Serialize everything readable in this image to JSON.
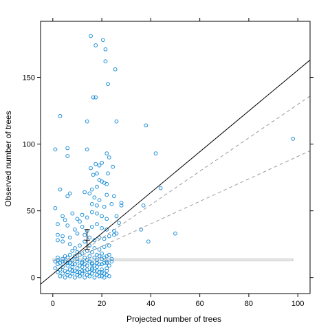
{
  "chart_data": {
    "type": "scatter",
    "title": "",
    "xlabel": "Projected number of trees",
    "ylabel": "Observed number of trees",
    "xlim": [
      -5,
      105
    ],
    "ylim": [
      -12,
      192
    ],
    "xticks": [
      0,
      20,
      40,
      60,
      80,
      100
    ],
    "yticks": [
      0,
      50,
      100,
      150
    ],
    "grid": false,
    "legend": "none",
    "colors": {
      "points": "#1f8fd6",
      "line": "#000000",
      "dashed": "#999999",
      "band": "#cccccc"
    },
    "points": [
      [
        15.5,
        181
      ],
      [
        20.5,
        178
      ],
      [
        17.5,
        174
      ],
      [
        21.5,
        171
      ],
      [
        21.5,
        162
      ],
      [
        25.5,
        156
      ],
      [
        22.5,
        145
      ],
      [
        17.5,
        135
      ],
      [
        16.5,
        135
      ],
      [
        3,
        121
      ],
      [
        14,
        117
      ],
      [
        26,
        117
      ],
      [
        38,
        114
      ],
      [
        98,
        104
      ],
      [
        1,
        96
      ],
      [
        6,
        97
      ],
      [
        14,
        96
      ],
      [
        22,
        93
      ],
      [
        23,
        90
      ],
      [
        6,
        91
      ],
      [
        20,
        86
      ],
      [
        17.5,
        85
      ],
      [
        18,
        78
      ],
      [
        19,
        84
      ],
      [
        15.5,
        82
      ],
      [
        16.5,
        77
      ],
      [
        24.5,
        83
      ],
      [
        22.5,
        78
      ],
      [
        42,
        93
      ],
      [
        44,
        67
      ],
      [
        3,
        66
      ],
      [
        7,
        63
      ],
      [
        6,
        61
      ],
      [
        19,
        73
      ],
      [
        20,
        72
      ],
      [
        21,
        71
      ],
      [
        22,
        70
      ],
      [
        18,
        68
      ],
      [
        16,
        66
      ],
      [
        13,
        64
      ],
      [
        15,
        63
      ],
      [
        22,
        62
      ],
      [
        25,
        61
      ],
      [
        17,
        60
      ],
      [
        19,
        58
      ],
      [
        16,
        55
      ],
      [
        18,
        54
      ],
      [
        21,
        53
      ],
      [
        24,
        55
      ],
      [
        28,
        56
      ],
      [
        28,
        54
      ],
      [
        37,
        54
      ],
      [
        1,
        52
      ],
      [
        4,
        46
      ],
      [
        5,
        43
      ],
      [
        8,
        48
      ],
      [
        10,
        44
      ],
      [
        12,
        47
      ],
      [
        11,
        42
      ],
      [
        14,
        45
      ],
      [
        16,
        49
      ],
      [
        18,
        48
      ],
      [
        20,
        46
      ],
      [
        22,
        44
      ],
      [
        26,
        46
      ],
      [
        27,
        41
      ],
      [
        2,
        40
      ],
      [
        6,
        39
      ],
      [
        9,
        36
      ],
      [
        12,
        38
      ],
      [
        14,
        35
      ],
      [
        16,
        38
      ],
      [
        18,
        40
      ],
      [
        20,
        37
      ],
      [
        22,
        36
      ],
      [
        25,
        35
      ],
      [
        26,
        33
      ],
      [
        36,
        36
      ],
      [
        2,
        32
      ],
      [
        4,
        31
      ],
      [
        7,
        30
      ],
      [
        10,
        33
      ],
      [
        13,
        32
      ],
      [
        15,
        30
      ],
      [
        17,
        28
      ],
      [
        19,
        30
      ],
      [
        21,
        29
      ],
      [
        23,
        31
      ],
      [
        25,
        32
      ],
      [
        39,
        27
      ],
      [
        50,
        33
      ],
      [
        2,
        28
      ],
      [
        4,
        27
      ],
      [
        7,
        25
      ],
      [
        9,
        22
      ],
      [
        11,
        24
      ],
      [
        13,
        27
      ],
      [
        15,
        24
      ],
      [
        17,
        22
      ],
      [
        19,
        21
      ],
      [
        21,
        23
      ],
      [
        23,
        24
      ],
      [
        8,
        20
      ],
      [
        10,
        19
      ],
      [
        12,
        18
      ],
      [
        14,
        20
      ],
      [
        16,
        19
      ],
      [
        18,
        17
      ],
      [
        20,
        18
      ],
      [
        22,
        16
      ],
      [
        2,
        15
      ],
      [
        4,
        14
      ],
      [
        6,
        15
      ],
      [
        8,
        13
      ],
      [
        10,
        14
      ],
      [
        12,
        12
      ],
      [
        14,
        13
      ],
      [
        16,
        11
      ],
      [
        18,
        13
      ],
      [
        20,
        14
      ],
      [
        22,
        12
      ],
      [
        24,
        14
      ],
      [
        1,
        12
      ],
      [
        3,
        11
      ],
      [
        5,
        12
      ],
      [
        7,
        11
      ],
      [
        9,
        10
      ],
      [
        11,
        9
      ],
      [
        13,
        10
      ],
      [
        15,
        12
      ],
      [
        17,
        9
      ],
      [
        19,
        10
      ],
      [
        21,
        11
      ],
      [
        23,
        9
      ],
      [
        2,
        10
      ],
      [
        4,
        8
      ],
      [
        6,
        9
      ],
      [
        8,
        8
      ],
      [
        10,
        7
      ],
      [
        12,
        8
      ],
      [
        14,
        6
      ],
      [
        16,
        7
      ],
      [
        18,
        8
      ],
      [
        20,
        6
      ],
      [
        22,
        7
      ],
      [
        1,
        7
      ],
      [
        3,
        6
      ],
      [
        5,
        5
      ],
      [
        7,
        6
      ],
      [
        9,
        5
      ],
      [
        11,
        4
      ],
      [
        13,
        5
      ],
      [
        15,
        4
      ],
      [
        17,
        5
      ],
      [
        19,
        4
      ],
      [
        21,
        3
      ],
      [
        2,
        4
      ],
      [
        4,
        3
      ],
      [
        6,
        2
      ],
      [
        8,
        3
      ],
      [
        10,
        2
      ],
      [
        12,
        3
      ],
      [
        14,
        2
      ],
      [
        16,
        3
      ],
      [
        18,
        2
      ],
      [
        20,
        1
      ],
      [
        22,
        2
      ],
      [
        3,
        1
      ],
      [
        5,
        0
      ],
      [
        7,
        1
      ],
      [
        9,
        0
      ],
      [
        11,
        1
      ],
      [
        13,
        0
      ],
      [
        15,
        1
      ],
      [
        17,
        0
      ],
      [
        19,
        1
      ],
      [
        21,
        0
      ],
      [
        23,
        1
      ],
      [
        6,
        4
      ],
      [
        8,
        5
      ],
      [
        10,
        4
      ],
      [
        12,
        5
      ],
      [
        16,
        6
      ],
      [
        18,
        5
      ],
      [
        20,
        4
      ],
      [
        22,
        5
      ],
      [
        2,
        13
      ],
      [
        4,
        12
      ],
      [
        6,
        11
      ],
      [
        8,
        10
      ],
      [
        10,
        12
      ],
      [
        12,
        11
      ],
      [
        14,
        9
      ],
      [
        16,
        10
      ],
      [
        18,
        11
      ],
      [
        20,
        10
      ],
      [
        22,
        11
      ],
      [
        24,
        12
      ],
      [
        13,
        15
      ],
      [
        15,
        16
      ],
      [
        17,
        15
      ],
      [
        19,
        16
      ],
      [
        21,
        15
      ],
      [
        23,
        17
      ],
      [
        9,
        16
      ],
      [
        11,
        17
      ],
      [
        7,
        17
      ],
      [
        5,
        16
      ]
    ],
    "reference_line": {
      "from": [
        -5,
        -5
      ],
      "to": [
        105,
        163
      ]
    },
    "upper_dashed_line": {
      "from": [
        10,
        17
      ],
      "to": [
        105,
        136
      ]
    },
    "lower_dashed_line": {
      "from": [
        10,
        15
      ],
      "to": [
        105,
        95
      ]
    },
    "horizontal_band": {
      "x": [
        0,
        98
      ],
      "y": [
        12.5,
        14
      ]
    },
    "error_bar": {
      "x": 14,
      "y": 28,
      "y_low": 21,
      "y_high": 36
    }
  }
}
